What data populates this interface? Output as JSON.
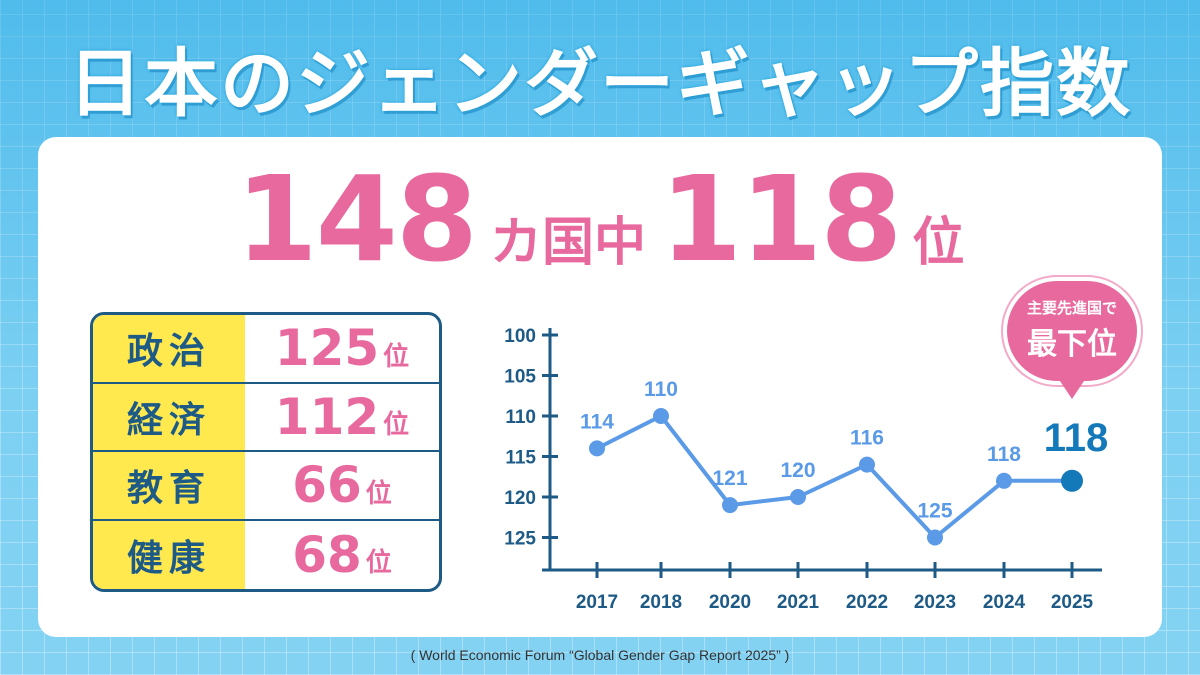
{
  "title": "日本のジェンダーギャップ指数",
  "overall": {
    "total": "148",
    "mid": "カ国中",
    "rank": "118",
    "unit": "位"
  },
  "categories": [
    {
      "label": "政治",
      "rank": "125",
      "unit": "位"
    },
    {
      "label": "経済",
      "rank": "112",
      "unit": "位"
    },
    {
      "label": "教育",
      "rank": "66",
      "unit": "位"
    },
    {
      "label": "健康",
      "rank": "68",
      "unit": "位"
    }
  ],
  "badge": {
    "line1": "主要先進国で",
    "line2": "最下位"
  },
  "source": "( World Economic Forum “Global Gender Gap Report 2025” )",
  "colors": {
    "pink": "#e8699e",
    "navy": "#1d5a86",
    "yellow": "#ffe94f",
    "line": "#5b9ae6",
    "highlight": "#1479b8"
  },
  "chart_data": {
    "type": "line",
    "categories": [
      "2017",
      "2018",
      "2020",
      "2021",
      "2022",
      "2023",
      "2024",
      "2025"
    ],
    "values": [
      114,
      110,
      121,
      120,
      116,
      125,
      118,
      118
    ],
    "data_labels": [
      "114",
      "110",
      "121",
      "120",
      "116",
      "125",
      "118",
      "118"
    ],
    "yticks": [
      "100",
      "105",
      "110",
      "115",
      "120",
      "125"
    ],
    "ylim": [
      100,
      127
    ],
    "y_inverted": true,
    "highlight_last": true
  }
}
